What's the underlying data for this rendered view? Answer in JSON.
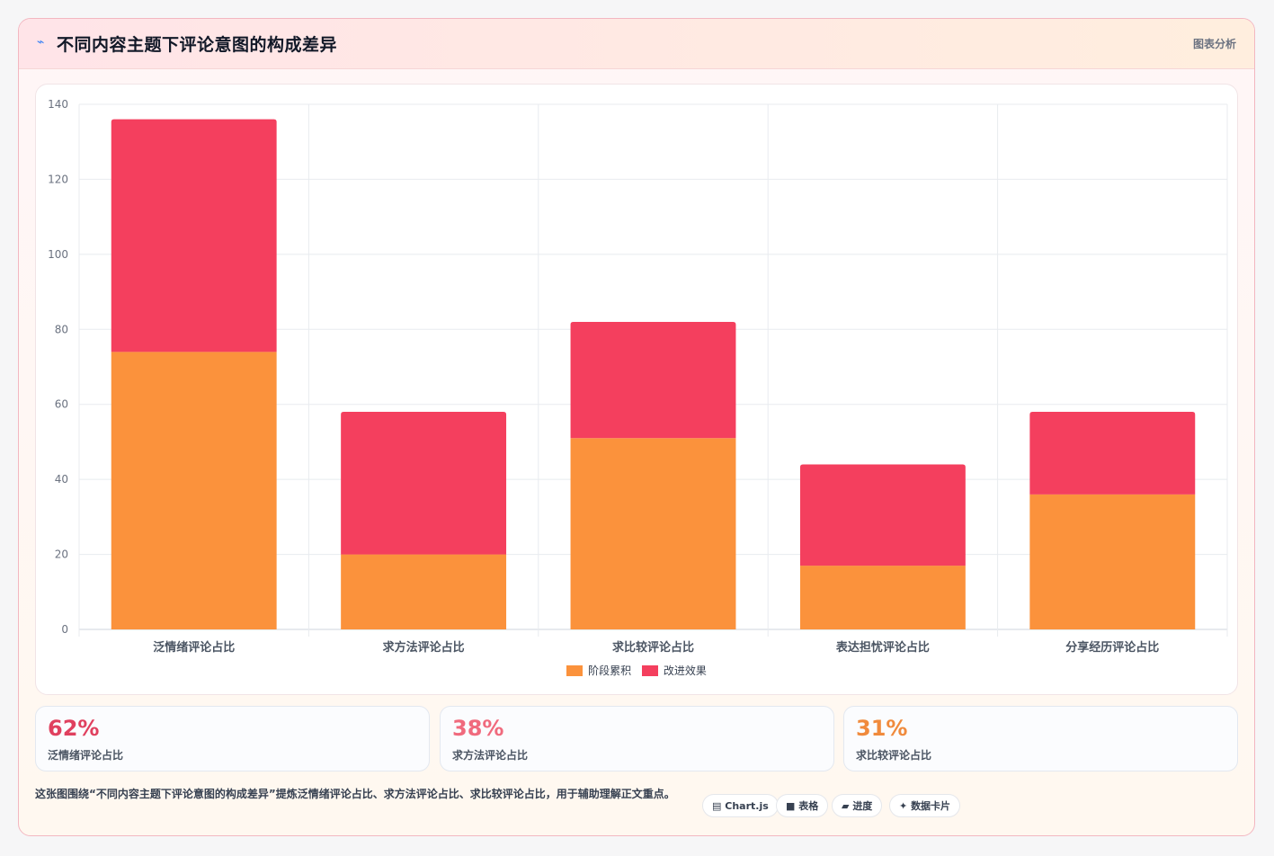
{
  "header": {
    "icon": "chart-spark-icon",
    "title": "不同内容主题下评论意图的构成差异",
    "tag": "图表分析"
  },
  "chart_data": {
    "type": "bar",
    "stacked": true,
    "categories": [
      "泛情绪评论占比",
      "求方法评论占比",
      "求比较评论占比",
      "表达担忧评论占比",
      "分享经历评论占比"
    ],
    "series": [
      {
        "name": "阶段累积",
        "color": "#fb923c",
        "values": [
          74,
          20,
          51,
          17,
          36
        ]
      },
      {
        "name": "改进效果",
        "color": "#f43f5e",
        "values": [
          62,
          38,
          31,
          27,
          22
        ]
      }
    ],
    "ylim": [
      0,
      140
    ],
    "yticks": [
      0,
      20,
      40,
      60,
      80,
      100,
      120,
      140
    ],
    "grid": true,
    "legend": "bottom"
  },
  "stats": [
    {
      "value": "62%",
      "label": "泛情绪评论占比",
      "color": "#e0405e"
    },
    {
      "value": "38%",
      "label": "求方法评论占比",
      "color": "#f06a7d"
    },
    {
      "value": "31%",
      "label": "求比较评论占比",
      "color": "#f08a3c"
    }
  ],
  "footer": {
    "text": "这张图围绕“不同内容主题下评论意图的构成差异”提炼泛情绪评论占比、求方法评论占比、求比较评论占比，用于辅助理解正文重点。",
    "chips": [
      {
        "icon": "chart-icon",
        "glyph": "▤",
        "label": "Chart.js"
      },
      {
        "icon": "table-icon",
        "glyph": "■",
        "label": "表格"
      },
      {
        "icon": "progress-icon",
        "glyph": "▰",
        "label": "进度"
      },
      {
        "icon": "sparkle-icon",
        "glyph": "✦",
        "label": "数据卡片"
      }
    ]
  }
}
